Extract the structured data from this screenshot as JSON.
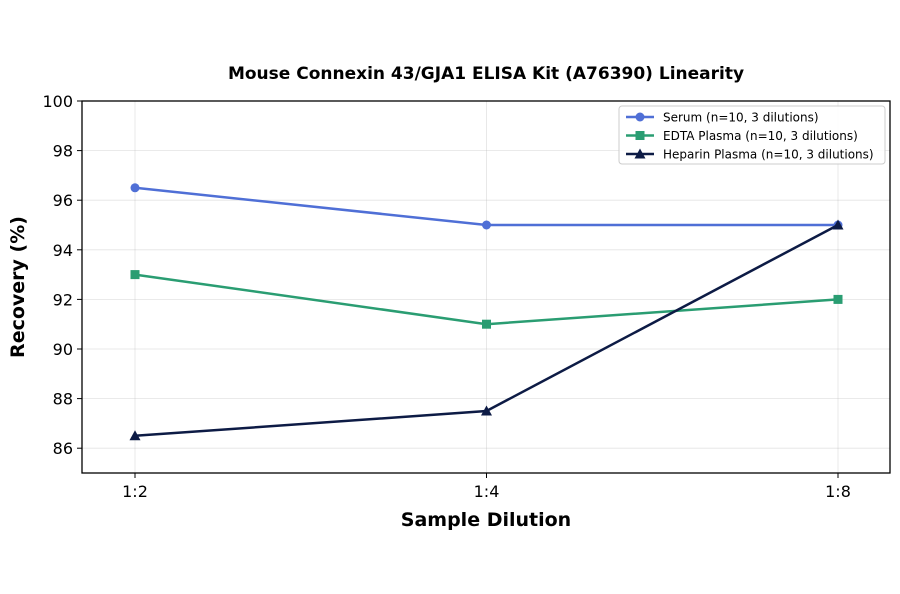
{
  "chart_data": {
    "type": "line",
    "title": "Mouse Connexin 43/GJA1 ELISA Kit (A76390) Linearity",
    "xlabel": "Sample Dilution",
    "ylabel": "Recovery (%)",
    "categories": [
      "1:2",
      "1:4",
      "1:8"
    ],
    "ylim": [
      85,
      100
    ],
    "yticks": [
      86,
      88,
      90,
      92,
      94,
      96,
      98,
      100
    ],
    "grid": true,
    "legend_position": "top-right",
    "series": [
      {
        "name": "Serum (n=10, 3 dilutions)",
        "values": [
          96.5,
          95.0,
          95.0
        ],
        "color": "#4f6fd6",
        "marker": "circle"
      },
      {
        "name": "EDTA Plasma (n=10, 3 dilutions)",
        "values": [
          93.0,
          91.0,
          92.0
        ],
        "color": "#2a9d72",
        "marker": "square"
      },
      {
        "name": "Heparin Plasma (n=10, 3 dilutions)",
        "values": [
          86.5,
          87.5,
          95.0
        ],
        "color": "#0d1b45",
        "marker": "triangle"
      }
    ]
  }
}
